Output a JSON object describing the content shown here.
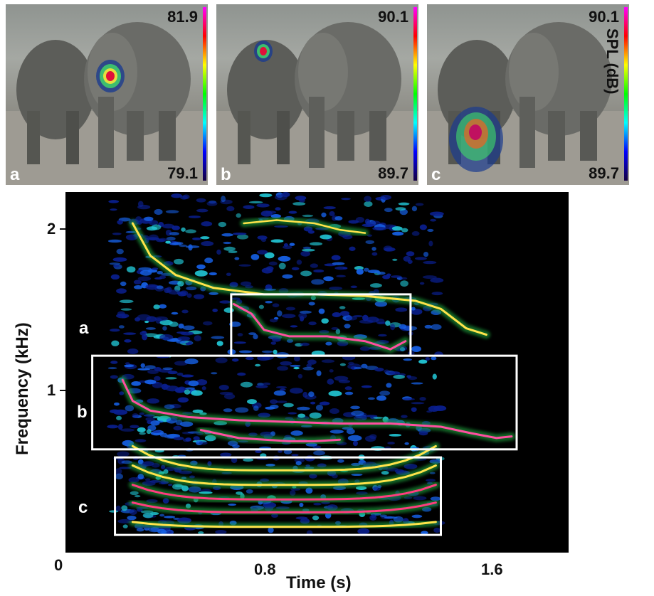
{
  "panels": [
    {
      "letter": "a",
      "max": "81.9",
      "min": "79.1"
    },
    {
      "letter": "b",
      "max": "90.1",
      "min": "89.7"
    },
    {
      "letter": "c",
      "max": "90.1",
      "min": "89.7"
    }
  ],
  "colorbar": {
    "label": "SPL (dB)",
    "colors": [
      "#ff00ff",
      "#ff0000",
      "#ffff00",
      "#00ff00",
      "#00ffff",
      "#0000ff"
    ]
  },
  "spectrogram": {
    "xlabel": "Time (s)",
    "ylabel": "Frequency (kHz)",
    "origin_label": "0",
    "x_ticks": [
      "0.8",
      "1.6"
    ],
    "y_ticks": [
      "1",
      "2"
    ],
    "boxes": [
      {
        "label": "a",
        "t_start": 0.67,
        "t_end": 1.38,
        "f_low": 1.18,
        "f_high": 1.56
      },
      {
        "label": "b",
        "t_start": 0.12,
        "t_end": 1.8,
        "f_low": 0.6,
        "f_high": 1.18
      },
      {
        "label": "c",
        "t_start": 0.21,
        "t_end": 1.5,
        "f_low": 0.07,
        "f_high": 0.55
      }
    ]
  }
}
